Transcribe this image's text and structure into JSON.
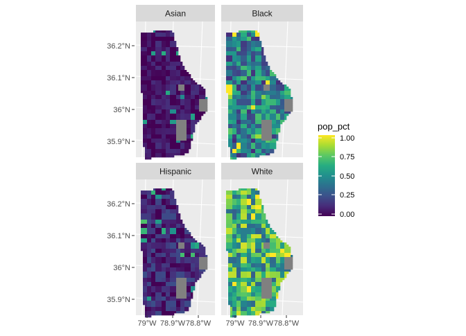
{
  "facets": [
    {
      "label": "Asian",
      "intensity": 0.05,
      "spread": 0.1
    },
    {
      "label": "Black",
      "intensity": 0.42,
      "spread": 0.3
    },
    {
      "label": "Hispanic",
      "intensity": 0.1,
      "spread": 0.14
    },
    {
      "label": "White",
      "intensity": 0.62,
      "spread": 0.32
    }
  ],
  "y_ticks": [
    "36.2°N",
    "36.1°N",
    "36°N",
    "35.9°N"
  ],
  "x_ticks": [
    "79°W",
    "78.9°W",
    "78.8°W"
  ],
  "legend": {
    "title": "pop_pct",
    "breaks": [
      "1.00",
      "0.75",
      "0.50",
      "0.25",
      "0.00"
    ],
    "colormap": "viridis"
  },
  "colors": {
    "panel_background": "#ebebeb",
    "strip_background": "#d9d9d9",
    "missing_data": "#808080",
    "viridis": [
      "#440154",
      "#472c7a",
      "#3b518b",
      "#2c718e",
      "#21908d",
      "#27ad81",
      "#5cc863",
      "#aadc32",
      "#fde725"
    ]
  }
}
